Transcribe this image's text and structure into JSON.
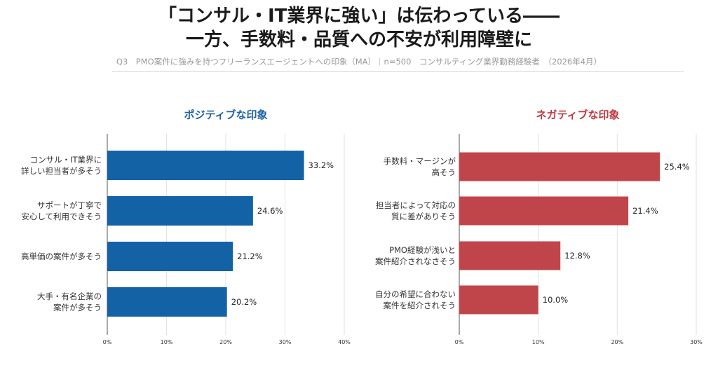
{
  "header": {
    "title_line1": "「コンサル・IT業界に強い」は伝わっている――",
    "title_line2": "一方、手数料・品質への不安が利用障壁に",
    "subtitle": "Q3　PMO案件に強みを持つフリーランスエージェントへの印象（MA）｜n=500　コンサルティング業界勤務経験者　（2026年4月）"
  },
  "chart_data": [
    {
      "type": "bar",
      "orientation": "horizontal",
      "title": "ポジティブな印象",
      "categories": [
        [
          "コンサル・IT業界に",
          "詳しい担当者が多そう"
        ],
        [
          "サポートが丁寧で",
          "安心して利用できそう"
        ],
        [
          "高単価の案件が多そう"
        ],
        [
          "大手・有名企業の",
          "案件が多そう"
        ]
      ],
      "values": [
        33.2,
        24.6,
        21.2,
        20.2
      ],
      "value_labels": [
        "33.2%",
        "24.6%",
        "21.2%",
        "20.2%"
      ],
      "xlim": [
        0,
        40
      ],
      "ticks": [
        0,
        10,
        20,
        30,
        40
      ],
      "tick_labels": [
        "0%",
        "10%",
        "20%",
        "30%",
        "40%"
      ],
      "color": "#1462a6",
      "title_color": "#1f63a8",
      "grid": true
    },
    {
      "type": "bar",
      "orientation": "horizontal",
      "title": "ネガティブな印象",
      "categories": [
        [
          "手数料・マージンが",
          "高そう"
        ],
        [
          "担当者によって対応の",
          "質に差がありそう"
        ],
        [
          "PMO経験が浅いと",
          "案件紹介されなさそう"
        ],
        [
          "自分の希望に合わない",
          "案件を紹介されそう"
        ]
      ],
      "values": [
        25.4,
        21.4,
        12.8,
        10.0
      ],
      "value_labels": [
        "25.4%",
        "21.4%",
        "12.8%",
        "10.0%"
      ],
      "xlim": [
        0,
        30
      ],
      "ticks": [
        0,
        10,
        20,
        30
      ],
      "tick_labels": [
        "0%",
        "10%",
        "20%",
        "30%"
      ],
      "color": "#c0454a",
      "title_color": "#c0393f",
      "grid": true
    }
  ]
}
